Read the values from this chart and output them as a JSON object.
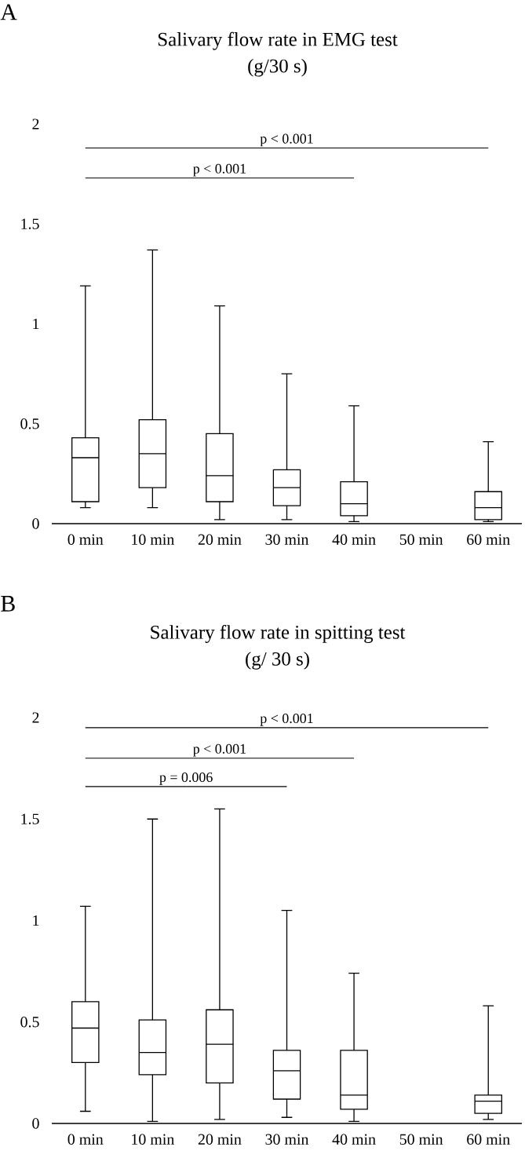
{
  "chart_data": [
    {
      "type": "box",
      "title": "Salivary flow rate in EMG test",
      "subtitle": "(g/30 s)",
      "categories": [
        "0 min",
        "10 min",
        "20 min",
        "30 min",
        "40 min",
        "50 min",
        "60 min"
      ],
      "boxes": [
        {
          "low": 0.08,
          "q1": 0.11,
          "median": 0.33,
          "q3": 0.43,
          "high": 1.19
        },
        {
          "low": 0.08,
          "q1": 0.18,
          "median": 0.35,
          "q3": 0.52,
          "high": 1.37
        },
        {
          "low": 0.02,
          "q1": 0.11,
          "median": 0.24,
          "q3": 0.45,
          "high": 1.09
        },
        {
          "low": 0.02,
          "q1": 0.09,
          "median": 0.18,
          "q3": 0.27,
          "high": 0.75
        },
        {
          "low": 0.01,
          "q1": 0.04,
          "median": 0.1,
          "q3": 0.21,
          "high": 0.59
        },
        null,
        {
          "low": 0.01,
          "q1": 0.02,
          "median": 0.08,
          "q3": 0.16,
          "high": 0.41
        }
      ],
      "ylim": [
        0,
        2
      ],
      "yticks": [
        0,
        0.5,
        1,
        1.5,
        2
      ],
      "annotations": [
        "A",
        "p < 0.001",
        "p < 0.001"
      ]
    },
    {
      "type": "box",
      "title": "Salivary flow rate in spitting test",
      "subtitle": "(g/ 30 s)",
      "categories": [
        "0 min",
        "10 min",
        "20 min",
        "30 min",
        "40 min",
        "50 min",
        "60 min"
      ],
      "boxes": [
        {
          "low": 0.06,
          "q1": 0.3,
          "median": 0.47,
          "q3": 0.6,
          "high": 1.07
        },
        {
          "low": 0.01,
          "q1": 0.24,
          "median": 0.35,
          "q3": 0.51,
          "high": 1.5
        },
        {
          "low": 0.02,
          "q1": 0.2,
          "median": 0.39,
          "q3": 0.56,
          "high": 1.55
        },
        {
          "low": 0.03,
          "q1": 0.12,
          "median": 0.26,
          "q3": 0.36,
          "high": 1.05
        },
        {
          "low": 0.01,
          "q1": 0.07,
          "median": 0.14,
          "q3": 0.36,
          "high": 0.74
        },
        null,
        {
          "low": 0.02,
          "q1": 0.05,
          "median": 0.11,
          "q3": 0.14,
          "high": 0.58
        }
      ],
      "ylim": [
        0,
        2
      ],
      "yticks": [
        0,
        0.5,
        1,
        1.5,
        2
      ],
      "annotations": [
        "B",
        "p < 0.001",
        "p < 0.001",
        "p = 0.006"
      ]
    }
  ]
}
